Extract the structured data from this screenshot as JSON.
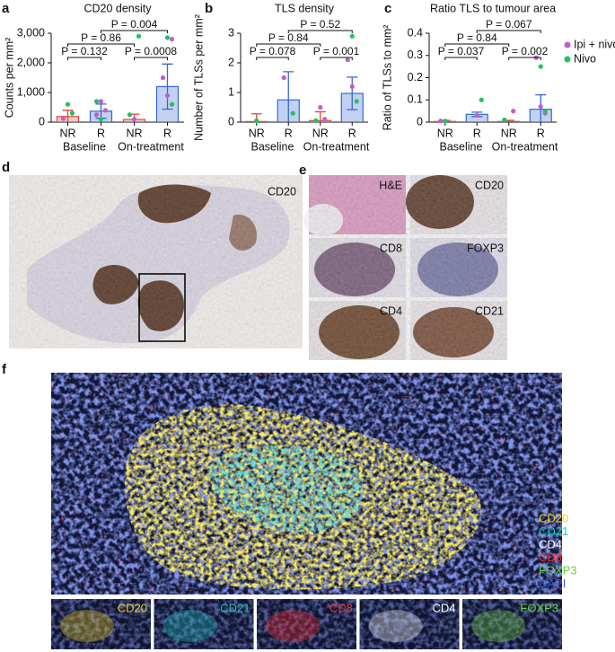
{
  "chart_data": [
    {
      "type": "bar",
      "title": "CD20 density",
      "y_label": "Counts per mm²",
      "categories": [
        "NR",
        "R",
        "NR",
        "R"
      ],
      "groups": [
        "Baseline",
        "On-treatment"
      ],
      "values": [
        190,
        370,
        90,
        1200
      ],
      "errors": [
        210,
        240,
        180,
        760
      ],
      "colors": [
        "#e0463b",
        "#3668cf",
        "#e0463b",
        "#3668cf"
      ],
      "ylim": [
        0,
        3000
      ],
      "yticks": [
        0,
        {
          "value": 1000,
          "label": "1,000"
        },
        {
          "value": 2000,
          "label": "2,000"
        },
        {
          "value": 3000,
          "label": "3,000"
        }
      ],
      "brackets": [
        {
          "from": 0,
          "to": 1,
          "label": "P = 0.132"
        },
        {
          "from": 2,
          "to": 3,
          "label": "P = 0.0008"
        },
        {
          "from": 0,
          "to": 2,
          "label": "P = 0.86"
        },
        {
          "from": 1,
          "to": 3,
          "label": "P = 0.004"
        }
      ],
      "points": [
        {
          "color": "#c45ccf",
          "category": [
            0,
            1,
            1,
            1,
            2,
            3,
            3,
            3
          ],
          "values": [
            120,
            700,
            400,
            250,
            100,
            2800,
            1500,
            900
          ]
        },
        {
          "color": "#22c160",
          "category": [
            0,
            0,
            1,
            1,
            2,
            2,
            3,
            3
          ],
          "values": [
            600,
            300,
            700,
            100,
            2900,
            250,
            2850,
            600
          ]
        }
      ]
    },
    {
      "type": "bar",
      "title": "TLS density",
      "y_label": "Number of TLSs per mm²",
      "categories": [
        "NR",
        "R",
        "NR",
        "R"
      ],
      "groups": [
        "Baseline",
        "On-treatment"
      ],
      "values": [
        0.02,
        0.75,
        0.05,
        0.97
      ],
      "errors": [
        0.26,
        0.95,
        0.3,
        0.55
      ],
      "colors": [
        "#e0463b",
        "#3668cf",
        "#e0463b",
        "#3668cf"
      ],
      "ylim": [
        0,
        3
      ],
      "yticks": [
        0,
        1,
        2,
        3
      ],
      "brackets": [
        {
          "from": 0,
          "to": 1,
          "label": "P = 0.078"
        },
        {
          "from": 2,
          "to": 3,
          "label": "P = 0.001"
        },
        {
          "from": 0,
          "to": 2,
          "label": "P = 0.84"
        },
        {
          "from": 1,
          "to": 3,
          "label": "P = 0.52"
        }
      ],
      "points": [
        {
          "color": "#c45ccf",
          "category": [
            1,
            2,
            2,
            3,
            3
          ],
          "values": [
            1.5,
            0.5,
            0.1,
            2.1,
            1.2
          ]
        },
        {
          "color": "#22c160",
          "category": [
            0,
            1,
            2,
            3,
            3
          ],
          "values": [
            0.05,
            0.3,
            0.05,
            2.9,
            0.7
          ]
        }
      ]
    },
    {
      "type": "bar",
      "title": "Ratio TLS to tumour area",
      "y_label": "Ratio of TLSs to mm²",
      "categories": [
        "NR",
        "R",
        "NR",
        "R"
      ],
      "groups": [
        "Baseline",
        "On-treatment"
      ],
      "values": [
        0.003,
        0.035,
        0.003,
        0.058
      ],
      "errors": [
        0.005,
        0.01,
        0.005,
        0.065
      ],
      "colors": [
        "#e0463b",
        "#3668cf",
        "#e0463b",
        "#3668cf"
      ],
      "ylim": [
        0,
        0.4
      ],
      "yticks": [
        0,
        0.1,
        0.2,
        0.3,
        0.4
      ],
      "brackets": [
        {
          "from": 0,
          "to": 1,
          "label": "P = 0.037"
        },
        {
          "from": 2,
          "to": 3,
          "label": "P = 0.002"
        },
        {
          "from": 0,
          "to": 2,
          "label": "P = 0.84"
        },
        {
          "from": 1,
          "to": 3,
          "label": "P = 0.067"
        }
      ],
      "points": [
        {
          "name": "Ipi + nivo",
          "color": "#c45ccf",
          "category": [
            0,
            1,
            2,
            3,
            3,
            3
          ],
          "values": [
            0.005,
            0.03,
            0.05,
            0.29,
            0.07,
            0.04
          ]
        },
        {
          "name": "Nivo",
          "color": "#22c160",
          "category": [
            0,
            1,
            2,
            3,
            3
          ],
          "values": [
            0.005,
            0.1,
            0.01,
            0.25,
            0.05
          ]
        }
      ]
    }
  ],
  "panels": {
    "letters": [
      "a",
      "b",
      "c",
      "d",
      "e",
      "f"
    ],
    "d": {
      "label": "CD20"
    },
    "e": {
      "labels": [
        "H&E",
        "CD20",
        "CD8",
        "FOXP3",
        "CD4",
        "CD21"
      ]
    },
    "f": {
      "legend": [
        {
          "label": "CD20",
          "color": "#f2d21e"
        },
        {
          "label": "CD21",
          "color": "#1fc4c0"
        },
        {
          "label": "CD4",
          "color": "#ffffff"
        },
        {
          "label": "CD8",
          "color": "#ff2a2a"
        },
        {
          "label": "FOXP3",
          "color": "#6fd23a"
        },
        {
          "label": "DAPI",
          "color": "#3d5bd6"
        }
      ],
      "strip": [
        {
          "label": "CD20",
          "color": "#f2d21e"
        },
        {
          "label": "CD21",
          "color": "#1fc4c0"
        },
        {
          "label": "CD8",
          "color": "#ff2a2a"
        },
        {
          "label": "CD4",
          "color": "#ffffff"
        },
        {
          "label": "FOXP3",
          "color": "#6fd23a"
        }
      ]
    }
  }
}
